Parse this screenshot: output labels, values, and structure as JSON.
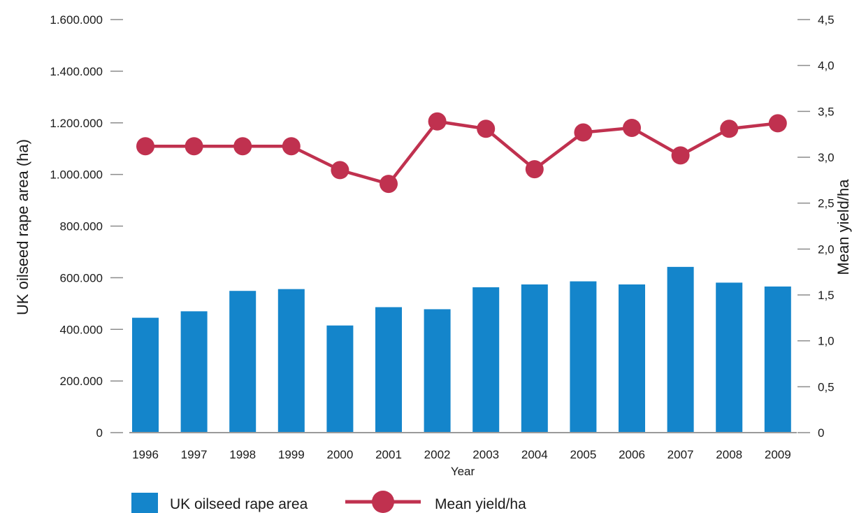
{
  "chart_data": {
    "type": "bar",
    "categories": [
      "1996",
      "1997",
      "1998",
      "1999",
      "2000",
      "2001",
      "2002",
      "2003",
      "2004",
      "2005",
      "2006",
      "2007",
      "2008",
      "2009"
    ],
    "series": [
      {
        "name": "UK oilseed rape area",
        "type": "bar",
        "axis": "left",
        "color": "#1485cb",
        "values": [
          445000,
          470000,
          549000,
          556000,
          415000,
          486000,
          478000,
          563000,
          574000,
          586000,
          574000,
          642000,
          581000,
          566000
        ]
      },
      {
        "name": "Mean yield/ha",
        "type": "line",
        "axis": "right",
        "color": "#c0314f",
        "values": [
          3.12,
          3.12,
          3.12,
          3.12,
          2.86,
          2.71,
          3.39,
          3.31,
          2.87,
          3.27,
          3.32,
          3.02,
          3.31,
          3.37
        ]
      }
    ],
    "xlabel": "Year",
    "ylabel": "UK oilseed rape area (ha)",
    "y2label": "Mean yield/ha",
    "ylim": [
      0,
      1600000
    ],
    "y2lim": [
      0,
      4.5
    ],
    "yticks": [
      "0",
      "200.000",
      "400.000",
      "600.000",
      "800.000",
      "1.000.000",
      "1.200.000",
      "1.400.000",
      "1.600.000"
    ],
    "yticks_values": [
      0,
      200000,
      400000,
      600000,
      800000,
      1000000,
      1200000,
      1400000,
      1600000
    ],
    "y2ticks": [
      "0",
      "0,5",
      "1,0",
      "1,5",
      "2,0",
      "2,5",
      "3,0",
      "3,5",
      "4,0",
      "4,5"
    ],
    "y2ticks_values": [
      0,
      0.5,
      1.0,
      1.5,
      2.0,
      2.5,
      3.0,
      3.5,
      4.0,
      4.5
    ],
    "grid": false,
    "legend": "bottom-left"
  }
}
